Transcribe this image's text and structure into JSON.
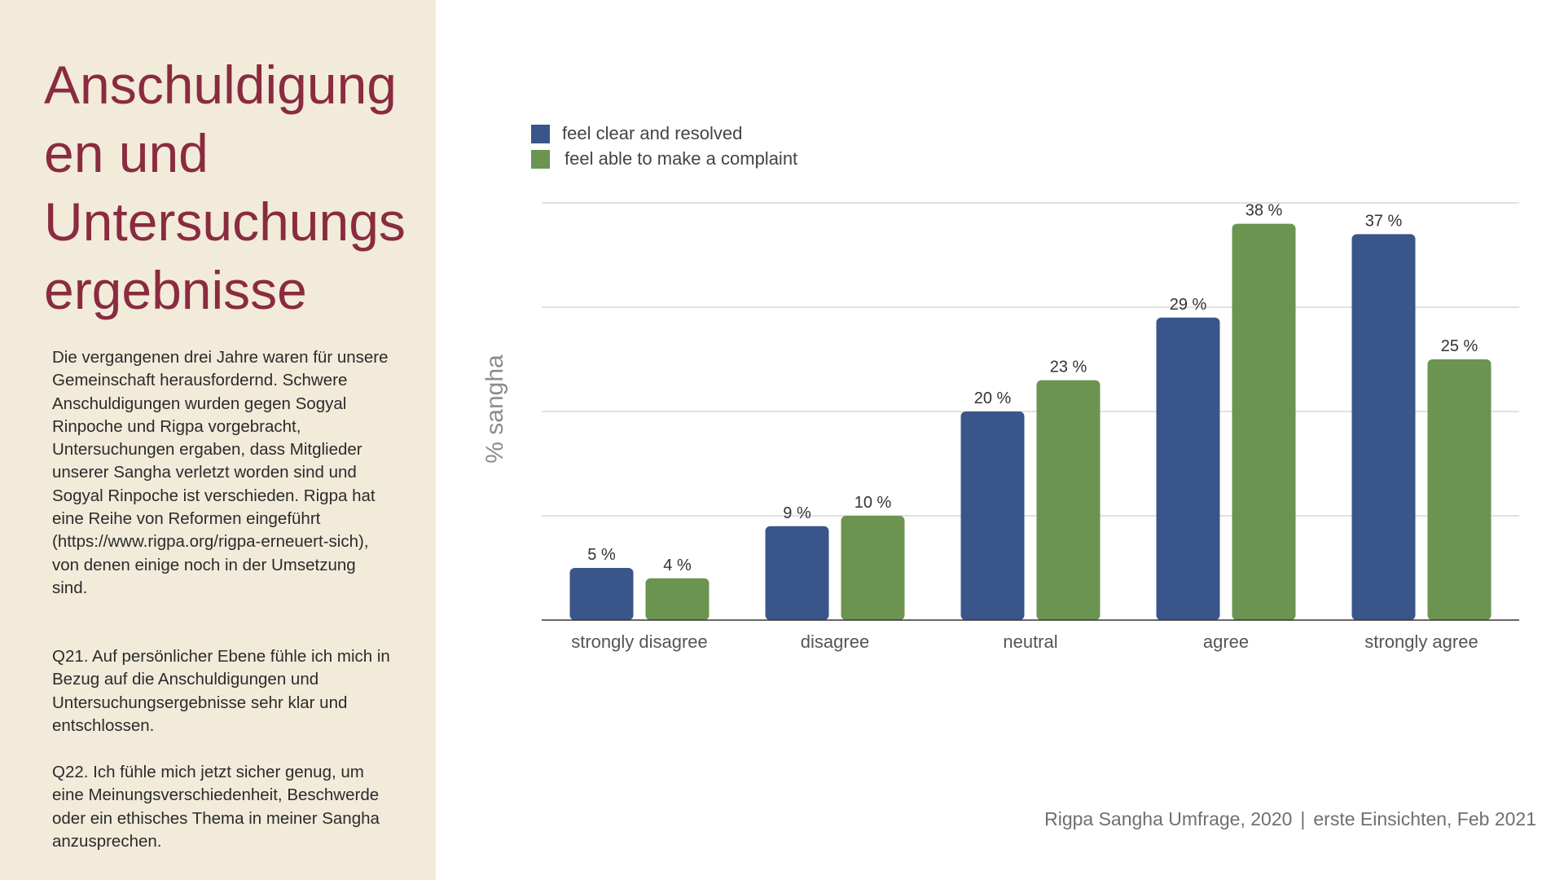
{
  "left_panel": {
    "title_lines": [
      "Anschuldigung",
      "en und",
      "Untersuchungs",
      "ergebnisse"
    ],
    "paragraph_1": "Die vergangenen drei Jahre waren für unsere Gemeinschaft herausfordernd. Schwere Anschuldigungen wurden gegen Sogyal Rinpoche und Rigpa vorgebracht, Untersuchungen ergaben, dass Mitglieder unserer Sangha verletzt worden sind und Sogyal Rinpoche ist verschieden. Rigpa hat eine Reihe von Reformen eingeführt (https://www.rigpa.org/rigpa-erneuert-sich), von denen einige noch in der Umsetzung sind.",
    "paragraph_2": "Q21. Auf persönlicher Ebene fühle ich mich in Bezug auf die Anschuldigungen und Untersuchungsergebnisse sehr klar und entschlossen.",
    "paragraph_3": "Q22. Ich fühle mich jetzt sicher genug, um eine Meinungsverschiedenheit, Beschwerde oder ein ethisches Thema in meiner Sangha anzusprechen."
  },
  "footer": {
    "left": "Rigpa Sangha Umfrage, 2020",
    "separator": "|",
    "right": "erste Einsichten, Feb 2021"
  },
  "colors": {
    "panel_background": "#f2ebda",
    "title": "#8a2b3f",
    "series_blue": "#3a5589",
    "series_green": "#6a9450",
    "gridline": "#cfcfcf",
    "axis": "#333333"
  },
  "chart_data": {
    "type": "bar",
    "ylabel": "% sangha",
    "xlabel": "",
    "ylim": [
      0,
      40
    ],
    "grid": true,
    "legend_position": "top-left",
    "value_suffix": " %",
    "categories": [
      "strongly disagree",
      "disagree",
      "neutral",
      "agree",
      "strongly agree"
    ],
    "series": [
      {
        "name": "feel clear and resolved",
        "color": "#3a5589",
        "values": [
          5,
          9,
          20,
          29,
          37
        ]
      },
      {
        "name": "feel able to make a complaint",
        "color": "#6a9450",
        "values": [
          4,
          10,
          23,
          38,
          25
        ]
      }
    ]
  }
}
